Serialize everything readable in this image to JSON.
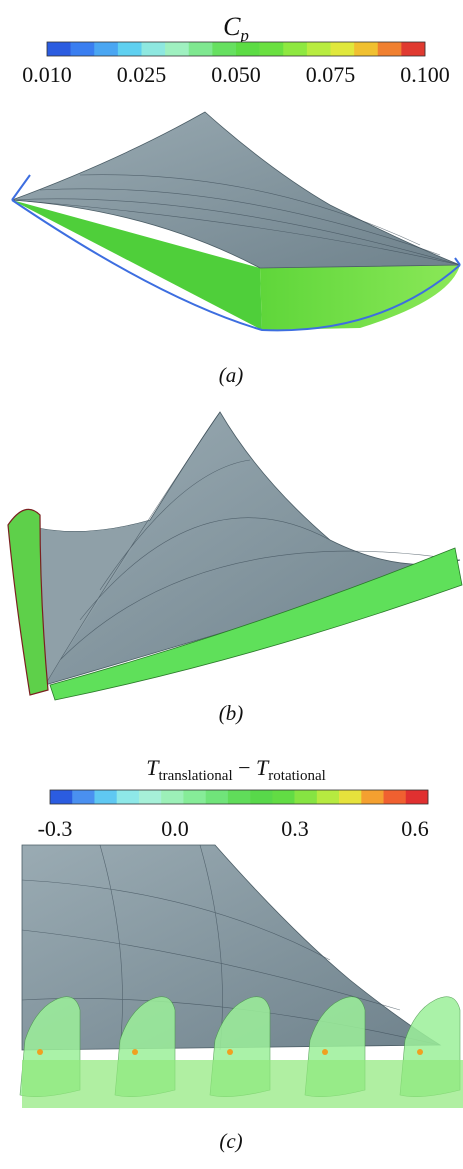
{
  "panel_a": {
    "colorbar": {
      "title": {
        "main": "C",
        "sub": "p"
      },
      "ticks": [
        "0.010",
        "0.025",
        "0.050",
        "0.075",
        "0.100"
      ]
    },
    "label": "(a)"
  },
  "panel_b": {
    "label": "(b)"
  },
  "panel_c": {
    "colorbar": {
      "title": {
        "main1": "T",
        "sub1": "translational",
        "minus": " − ",
        "main2": "T",
        "sub2": "rotational"
      },
      "ticks": [
        "-0.3",
        "0.0",
        "0.3",
        "0.6"
      ]
    },
    "label": "(c)"
  }
}
